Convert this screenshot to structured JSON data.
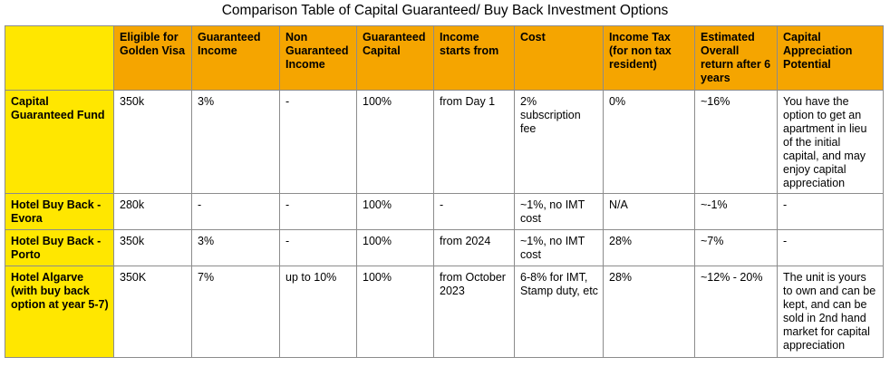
{
  "title": "Comparison Table of Capital Guaranteed/ Buy Back Investment Options",
  "headers": [
    "",
    "Eligible for Golden Visa",
    "Guaranteed Income",
    "Non Guaranteed Income",
    "Guaranteed Capital",
    "Income starts from",
    "Cost",
    "Income Tax (for non tax resident)",
    "Estimated Overall return after 6 years",
    "Capital Appreciation Potential"
  ],
  "rows": [
    {
      "label": "Capital Guaranteed Fund",
      "cells": [
        "350k",
        "3%",
        "-",
        "100%",
        "from Day 1",
        "2% subscription fee",
        "0%",
        "~16%",
        "You have the option to get an apartment in lieu of the initial capital, and may enjoy capital appreciation"
      ]
    },
    {
      "label": "Hotel Buy Back - Evora",
      "cells": [
        "280k",
        "-",
        "-",
        "100%",
        "-",
        "~1%, no IMT cost",
        "N/A",
        "~-1%",
        "-"
      ]
    },
    {
      "label": "Hotel Buy Back - Porto",
      "cells": [
        "350k",
        "3%",
        "-",
        "100%",
        "from 2024",
        "~1%, no IMT cost",
        "28%",
        "~7%",
        "-"
      ]
    },
    {
      "label": "Hotel Algarve (with buy back option at year 5-7)",
      "cells": [
        "350K",
        "7%",
        "up to 10%",
        "100%",
        "from October 2023",
        "6-8% for IMT, Stamp duty, etc",
        "28%",
        "~12% - 20%",
        "The unit is yours to own and can be kept, and can be sold in 2nd hand market for capital appreciation"
      ]
    }
  ],
  "colors": {
    "header_orange": "#f5a500",
    "label_yellow": "#ffe700",
    "border": "#8c8c8c"
  }
}
